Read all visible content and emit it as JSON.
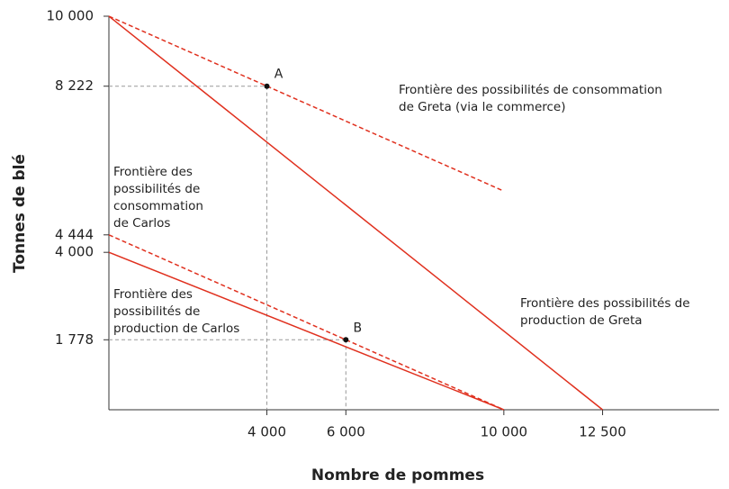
{
  "chart_data": {
    "type": "line",
    "x_label": "Nombre de pommes",
    "y_label": "Tonnes de blé",
    "xlim": [
      0,
      15450
    ],
    "ylim": [
      0,
      10000
    ],
    "xticks": [
      {
        "value": 4000,
        "label": "4 000"
      },
      {
        "value": 6000,
        "label": "6 000"
      },
      {
        "value": 10000,
        "label": "10 000"
      },
      {
        "value": 12500,
        "label": "12 500"
      }
    ],
    "yticks": [
      {
        "value": 1778,
        "label": "1 778"
      },
      {
        "value": 4000,
        "label": "4 000"
      },
      {
        "value": 4444,
        "label": "4 444"
      },
      {
        "value": 8222,
        "label": "8 222"
      },
      {
        "value": 10000,
        "label": "10 000"
      }
    ],
    "series": [
      {
        "name": "Frontière des possibilités de consommation de Greta (via le commerce)",
        "color": "#e0301e",
        "dashed": true,
        "x": [
          0,
          10000
        ],
        "values": [
          10000,
          5556
        ]
      },
      {
        "name": "Frontière des possibilités de production de Greta",
        "color": "#e0301e",
        "dashed": false,
        "x": [
          0,
          12500
        ],
        "values": [
          10000,
          0
        ]
      },
      {
        "name": "Frontière des possibilités de consommation de Carlos",
        "color": "#e0301e",
        "dashed": true,
        "x": [
          0,
          10000
        ],
        "values": [
          4444,
          0
        ]
      },
      {
        "name": "Frontière des possibilités de production de Carlos",
        "color": "#e0301e",
        "dashed": false,
        "x": [
          0,
          10000
        ],
        "values": [
          4000,
          0
        ]
      }
    ],
    "points": [
      {
        "label": "A",
        "x": 4000,
        "y": 8222
      },
      {
        "label": "B",
        "x": 6000,
        "y": 1778
      }
    ]
  }
}
